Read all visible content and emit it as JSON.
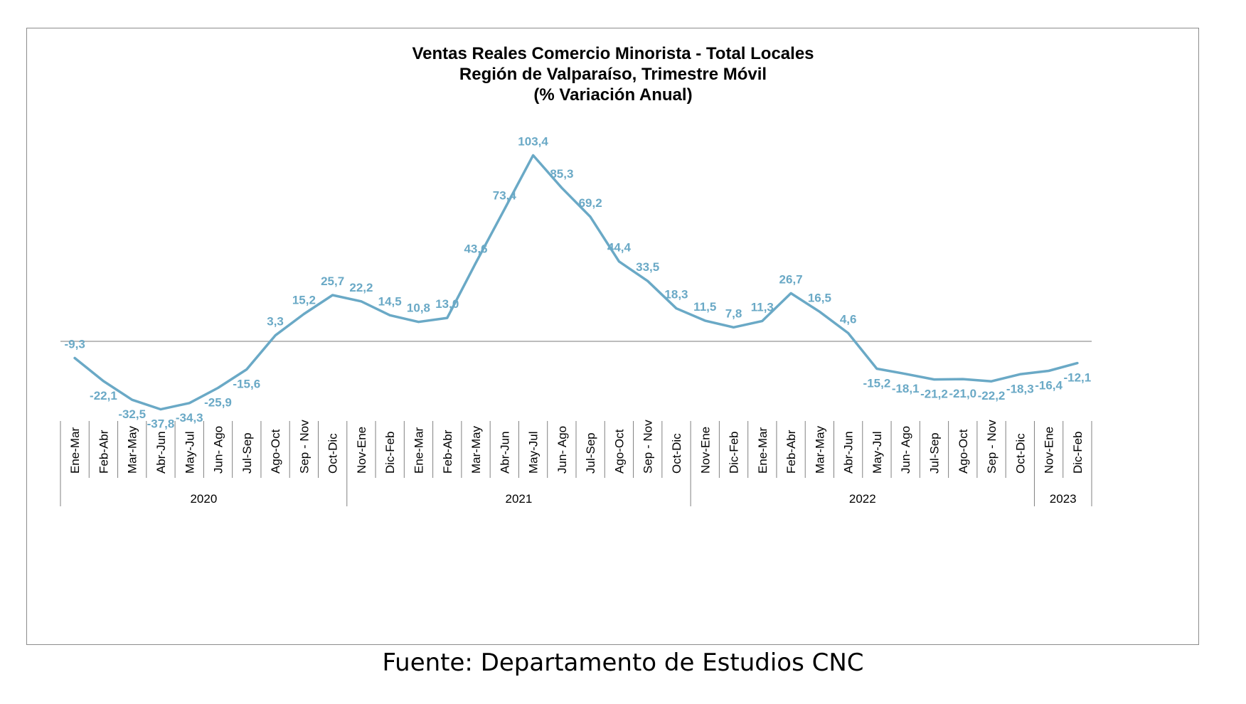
{
  "chart_data": {
    "type": "line",
    "title": "Ventas Reales Comercio Minorista - Total Locales",
    "subtitle": "Región de Valparaíso, Trimestre Móvil",
    "subtitle2": "(% Variación Anual)",
    "categories": [
      "Ene-Mar",
      "Feb-Abr",
      "Mar-May",
      "Abr-Jun",
      "May-Jul",
      "Jun- Ago",
      "Jul-Sep",
      "Ago-Oct",
      "Sep - Nov",
      "Oct-Dic",
      "Nov-Ene",
      "Dic-Feb",
      "Ene-Mar",
      "Feb-Abr",
      "Mar-May",
      "Abr-Jun",
      "May-Jul",
      "Jun- Ago",
      "Jul-Sep",
      "Ago-Oct",
      "Sep - Nov",
      "Oct-Dic",
      "Nov-Ene",
      "Dic-Feb",
      "Ene-Mar",
      "Feb-Abr",
      "Mar-May",
      "Abr-Jun",
      "May-Jul",
      "Jun- Ago",
      "Jul-Sep",
      "Ago-Oct",
      "Sep - Nov",
      "Oct-Dic",
      "Nov-Ene",
      "Dic-Feb"
    ],
    "year_groups": [
      {
        "label": "2020",
        "count": 10
      },
      {
        "label": "2021",
        "count": 12
      },
      {
        "label": "2022",
        "count": 12
      },
      {
        "label": "2023",
        "count": 2
      }
    ],
    "values": [
      -9.3,
      -22.1,
      -32.5,
      -37.8,
      -34.3,
      -25.9,
      -15.6,
      3.3,
      15.2,
      25.7,
      22.2,
      14.5,
      10.8,
      13.0,
      43.6,
      73.4,
      103.4,
      85.3,
      69.2,
      44.4,
      33.5,
      18.3,
      11.5,
      7.8,
      11.3,
      26.7,
      16.5,
      4.6,
      -15.2,
      -18.1,
      -21.2,
      -21.0,
      -22.2,
      -18.3,
      -16.4,
      -12.1
    ],
    "data_labels": [
      "-9,3",
      "-22,1",
      "-32,5",
      "-37,8",
      "-34,3",
      "-25,9",
      "-15,6",
      "3,3",
      "15,2",
      "25,7",
      "22,2",
      "14,5",
      "10,8",
      "13,0",
      "43,6",
      "73,4",
      "103,4",
      "85,3",
      "69,2",
      "44,4",
      "33,5",
      "18,3",
      "11,5",
      "7,8",
      "11,3",
      "26,7",
      "16,5",
      "4,6",
      "-15,2",
      "-18,1",
      "-21,2",
      "-21,0",
      "-22,2",
      "-18,3",
      "-16,4",
      "-12,1"
    ],
    "ylim": [
      -40,
      110
    ],
    "line_color": "#6aa9c6",
    "label_color": "#6aa9c6",
    "grid": false
  },
  "source": "Fuente: Departamento de Estudios CNC"
}
